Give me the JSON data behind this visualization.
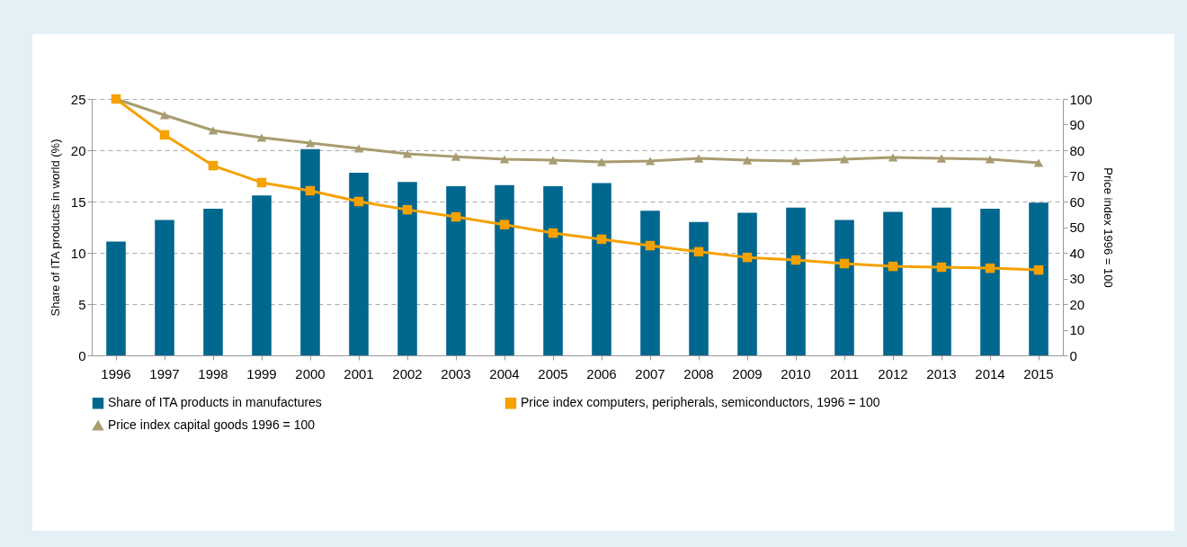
{
  "chart_data": {
    "type": "bar",
    "ylabel": "Share of ITA products in world (%)",
    "y2label": "Price index 1996 = 100",
    "categories": [
      "1996",
      "1997",
      "1998",
      "1999",
      "2000",
      "2001",
      "2002",
      "2003",
      "2004",
      "2005",
      "2006",
      "2007",
      "2008",
      "2009",
      "2010",
      "2011",
      "2012",
      "2013",
      "2014",
      "2015"
    ],
    "series": [
      {
        "name": "Share of ITA products in manufactures",
        "color": "#00678f",
        "values": [
          11.1,
          13.2,
          14.3,
          15.6,
          20.1,
          17.8,
          16.9,
          16.5,
          16.6,
          16.5,
          16.8,
          14.1,
          13.0,
          13.9,
          14.4,
          13.2,
          14.0,
          14.4,
          14.3,
          14.9
        ]
      },
      {
        "name": "Price index computers, peripherals, semiconductors, 1996 = 100",
        "type": "line",
        "axis": "y2",
        "marker": "square",
        "color": "#f5a100",
        "values": [
          100,
          86,
          74,
          67.4,
          64.2,
          60,
          56.8,
          54,
          51,
          47.7,
          45.3,
          42.8,
          40.4,
          38.2,
          37.2,
          35.8,
          34.7,
          34.4,
          34,
          33.3
        ]
      },
      {
        "name": "Price index capital goods 1996 = 100",
        "type": "line",
        "axis": "y2",
        "marker": "triangle",
        "color": "#a89c70",
        "values": [
          100,
          93.7,
          87.7,
          84.9,
          82.8,
          80.7,
          78.6,
          77.5,
          76.5,
          76.1,
          75.4,
          75.8,
          76.8,
          76.1,
          75.8,
          76.5,
          77.2,
          76.8,
          76.5,
          75.1
        ]
      }
    ],
    "ylim": [
      0,
      25
    ],
    "yticks": [
      0,
      5,
      10,
      15,
      20,
      25
    ],
    "y2lim": [
      0,
      100
    ],
    "y2ticks": [
      0,
      10,
      20,
      30,
      40,
      50,
      60,
      70,
      80,
      90,
      100
    ],
    "grid": "y",
    "legend": "bottom"
  }
}
